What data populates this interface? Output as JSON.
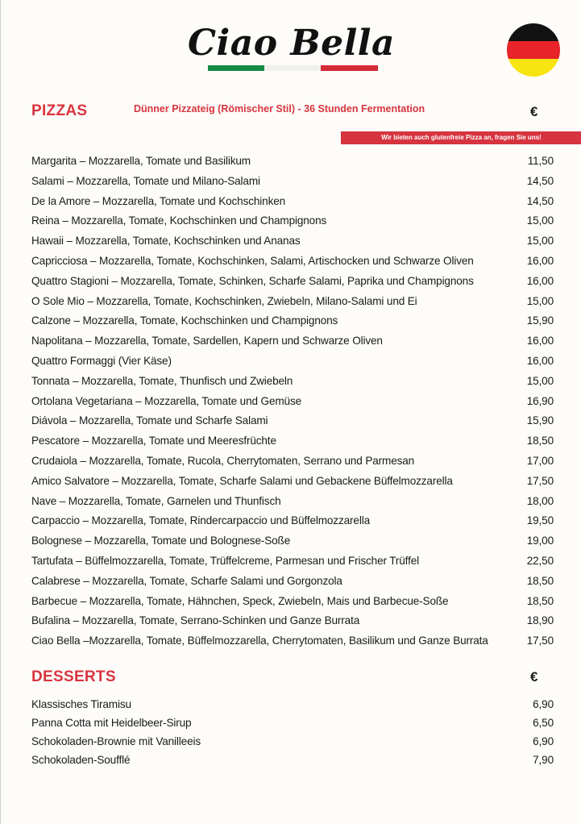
{
  "header": {
    "title": "Ciao Bella",
    "stripe_colors": [
      "#168a45",
      "#f0f0ee",
      "#d42a36"
    ],
    "flag": {
      "icon": "germany-flag-icon",
      "colors": [
        "#121212",
        "#e8232a",
        "#f7e411"
      ]
    }
  },
  "pizzas": {
    "heading": "PIZZAS",
    "subtitle": "Dünner Pizzateig (Römischer Stil) - 36 Stunden Fermentation",
    "currency": "€",
    "banner": "Wir bieten auch glutenfreie Pizza an, fragen Sie uns!",
    "items": [
      {
        "name": "Margarita – Mozzarella, Tomate und Basilikum",
        "price": "11,50"
      },
      {
        "name": "Salami – Mozzarella, Tomate und Milano-Salami",
        "price": "14,50"
      },
      {
        "name": "De la Amore – Mozzarella, Tomate und Kochschinken",
        "price": "14,50"
      },
      {
        "name": "Reina – Mozzarella, Tomate, Kochschinken und Champignons",
        "price": "15,00"
      },
      {
        "name": "Hawaii – Mozzarella, Tomate, Kochschinken und Ananas",
        "price": "15,00"
      },
      {
        "name": "Capricciosa – Mozzarella, Tomate, Kochschinken, Salami, Artischocken und Schwarze Oliven",
        "price": "16,00"
      },
      {
        "name": "Quattro Stagioni – Mozzarella, Tomate, Schinken, Scharfe Salami, Paprika und Champignons",
        "price": "16,00"
      },
      {
        "name": "O Sole Mio – Mozzarella, Tomate, Kochschinken, Zwiebeln, Milano-Salami und Ei",
        "price": "15,00"
      },
      {
        "name": "Calzone – Mozzarella, Tomate, Kochschinken und Champignons",
        "price": "15,90"
      },
      {
        "name": "Napolitana – Mozzarella, Tomate, Sardellen, Kapern und Schwarze Oliven",
        "price": "16,00"
      },
      {
        "name": "Quattro Formaggi (Vier Käse)",
        "price": "16,00"
      },
      {
        "name": "Tonnata – Mozzarella, Tomate, Thunfisch und Zwiebeln",
        "price": "15,00"
      },
      {
        "name": "Ortolana Vegetariana – Mozzarella, Tomate und Gemüse",
        "price": "16,90"
      },
      {
        "name": "Diávola – Mozzarella, Tomate und Scharfe Salami",
        "price": "15,90"
      },
      {
        "name": "Pescatore – Mozzarella, Tomate und Meeresfrüchte",
        "price": "18,50"
      },
      {
        "name": "Crudaiola – Mozzarella, Tomate, Rucola, Cherrytomaten, Serrano und Parmesan",
        "price": "17,00"
      },
      {
        "name": "Amico Salvatore – Mozzarella, Tomate, Scharfe Salami und Gebackene Büffelmozzarella",
        "price": "17,50"
      },
      {
        "name": "Nave – Mozzarella, Tomate, Garnelen und Thunfisch",
        "price": "18,00"
      },
      {
        "name": "Carpaccio – Mozzarella, Tomate, Rindercarpaccio und Büffelmozzarella",
        "price": "19,50"
      },
      {
        "name": "Bolognese – Mozzarella, Tomate und Bolognese-Soße",
        "price": "19,00"
      },
      {
        "name": "Tartufata – Büffelmozzarella, Tomate, Trüffelcreme, Parmesan und Frischer Trüffel",
        "price": "22,50"
      },
      {
        "name": "Calabrese – Mozzarella, Tomate, Scharfe Salami und Gorgonzola",
        "price": "18,50"
      },
      {
        "name": "Barbecue – Mozzarella, Tomate, Hähnchen, Speck, Zwiebeln, Mais und Barbecue-Soße",
        "price": "18,50"
      },
      {
        "name": "Bufalina – Mozzarella, Tomate, Serrano-Schinken und Ganze Burrata",
        "price": "18,90"
      },
      {
        "name": "Ciao Bella –Mozzarella, Tomate, Büffelmozzarella, Cherrytomaten, Basilikum und Ganze Burrata",
        "price": "17,50"
      }
    ]
  },
  "desserts": {
    "heading": "DESSERTS",
    "currency": "€",
    "items": [
      {
        "name": "Klassisches Tiramisu",
        "price": "6,90"
      },
      {
        "name": "Panna Cotta mit Heidelbeer-Sirup",
        "price": "6,50"
      },
      {
        "name": "Schokoladen-Brownie mit Vanilleeis",
        "price": "6,90"
      },
      {
        "name": "Schokoladen-Soufflé",
        "price": "7,90"
      }
    ]
  }
}
